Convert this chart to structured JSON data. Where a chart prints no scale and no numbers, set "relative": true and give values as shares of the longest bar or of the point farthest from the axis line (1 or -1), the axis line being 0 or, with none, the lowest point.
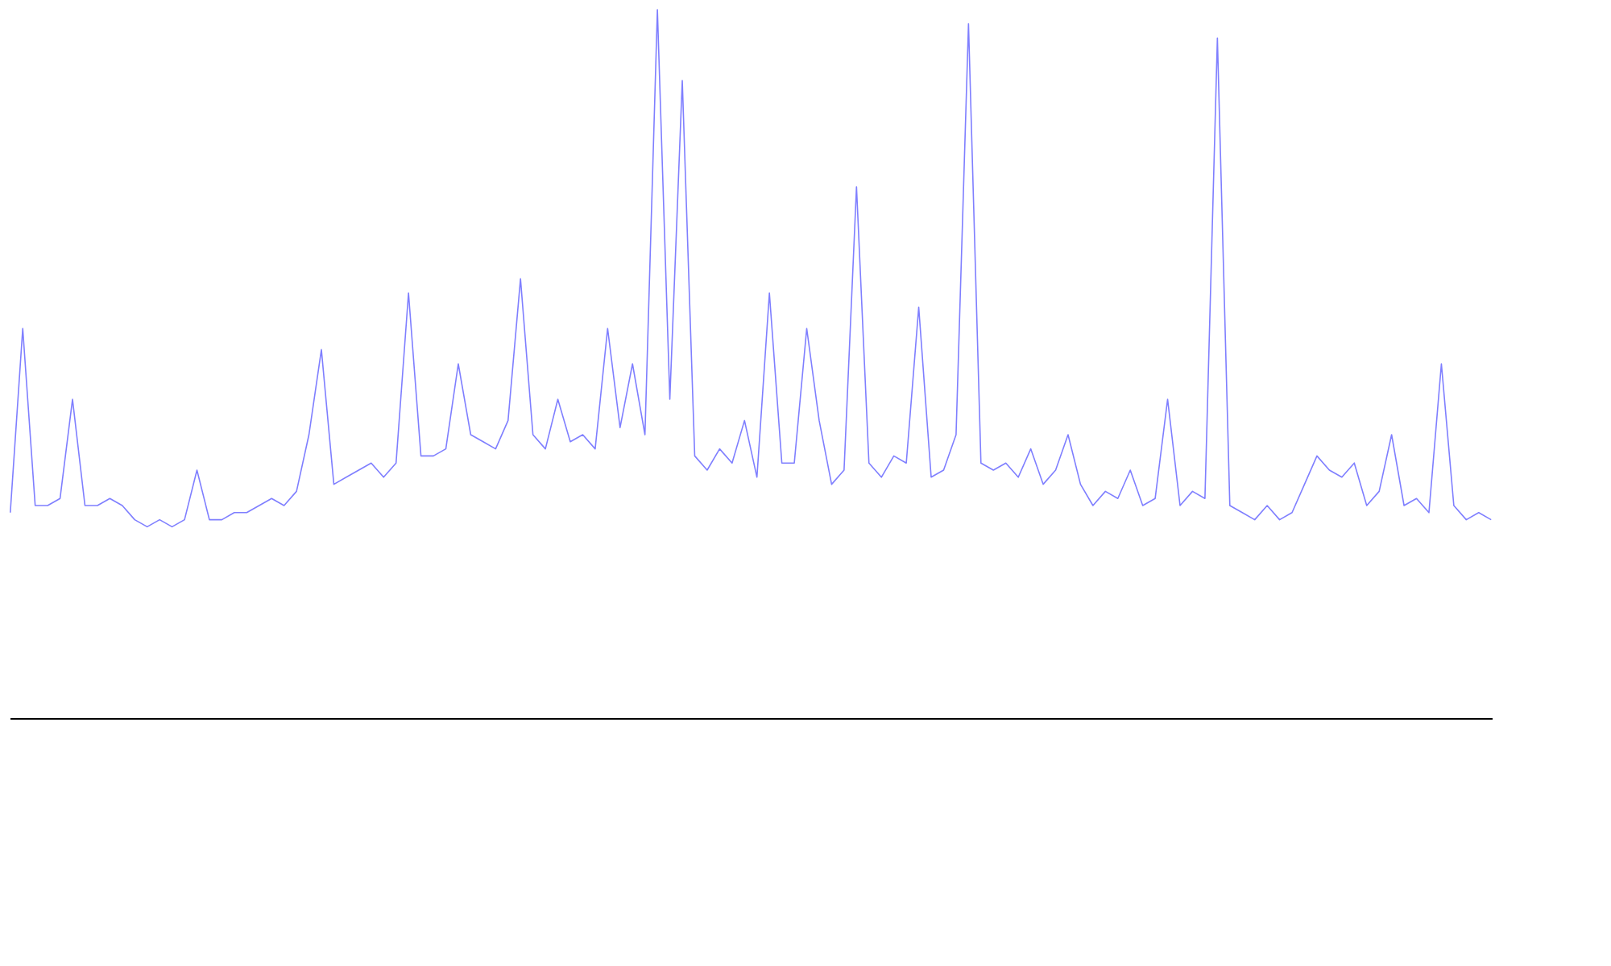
{
  "chart_data": {
    "type": "line",
    "relative": true,
    "tick_labels": false,
    "grid": false,
    "marker": "none",
    "line_style": "solid",
    "categories": [
      null,
      null,
      null,
      null,
      null,
      null,
      null,
      null,
      null,
      null,
      null,
      null,
      null,
      null,
      null,
      null,
      null,
      null,
      null,
      null,
      null,
      null,
      null,
      null,
      null,
      null,
      null,
      null,
      null,
      null,
      null,
      null,
      null,
      null,
      null,
      null,
      null,
      null,
      null,
      null,
      null,
      null,
      null,
      null,
      null,
      null,
      null,
      null,
      null,
      null,
      null,
      null,
      null,
      null,
      null,
      null,
      null,
      null,
      null,
      null,
      null,
      null,
      null,
      null,
      null,
      null,
      null,
      null,
      null,
      null,
      null,
      null,
      null,
      null,
      null,
      null,
      null,
      null,
      null,
      null,
      null,
      null,
      null,
      null,
      null,
      null,
      null,
      null,
      null,
      null,
      null,
      null,
      null,
      null,
      null,
      null,
      null,
      null,
      null,
      null,
      null,
      null,
      null,
      null,
      null,
      null,
      null,
      null,
      null,
      null,
      null,
      null,
      null,
      null,
      null,
      null,
      null,
      null,
      null,
      null
    ],
    "series": [
      {
        "color": "#7f7fff",
        "values": [
          0.29,
          0.55,
          0.3,
          0.3,
          0.31,
          0.45,
          0.3,
          0.3,
          0.31,
          0.3,
          0.28,
          0.27,
          0.28,
          0.27,
          0.28,
          0.35,
          0.28,
          0.28,
          0.29,
          0.29,
          0.3,
          0.31,
          0.3,
          0.32,
          0.4,
          0.52,
          0.33,
          0.34,
          0.35,
          0.36,
          0.34,
          0.36,
          0.6,
          0.37,
          0.37,
          0.38,
          0.5,
          0.4,
          0.39,
          0.38,
          0.42,
          0.62,
          0.4,
          0.38,
          0.45,
          0.39,
          0.4,
          0.38,
          0.55,
          0.41,
          0.5,
          0.4,
          1,
          0.45,
          0.9,
          0.37,
          0.35,
          0.38,
          0.36,
          0.42,
          0.34,
          0.6,
          0.36,
          0.36,
          0.55,
          0.42,
          0.33,
          0.35,
          0.75,
          0.36,
          0.34,
          0.37,
          0.36,
          0.58,
          0.34,
          0.35,
          0.4,
          0.98,
          0.36,
          0.35,
          0.36,
          0.34,
          0.38,
          0.33,
          0.35,
          0.4,
          0.33,
          0.3,
          0.32,
          0.31,
          0.35,
          0.3,
          0.31,
          0.45,
          0.3,
          0.32,
          0.31,
          0.96,
          0.3,
          0.29,
          0.28,
          0.3,
          0.28,
          0.29,
          0.33,
          0.37,
          0.35,
          0.34,
          0.36,
          0.3,
          0.32,
          0.4,
          0.3,
          0.31,
          0.29,
          0.5,
          0.3,
          0.28,
          0.29,
          0.28
        ]
      }
    ]
  }
}
